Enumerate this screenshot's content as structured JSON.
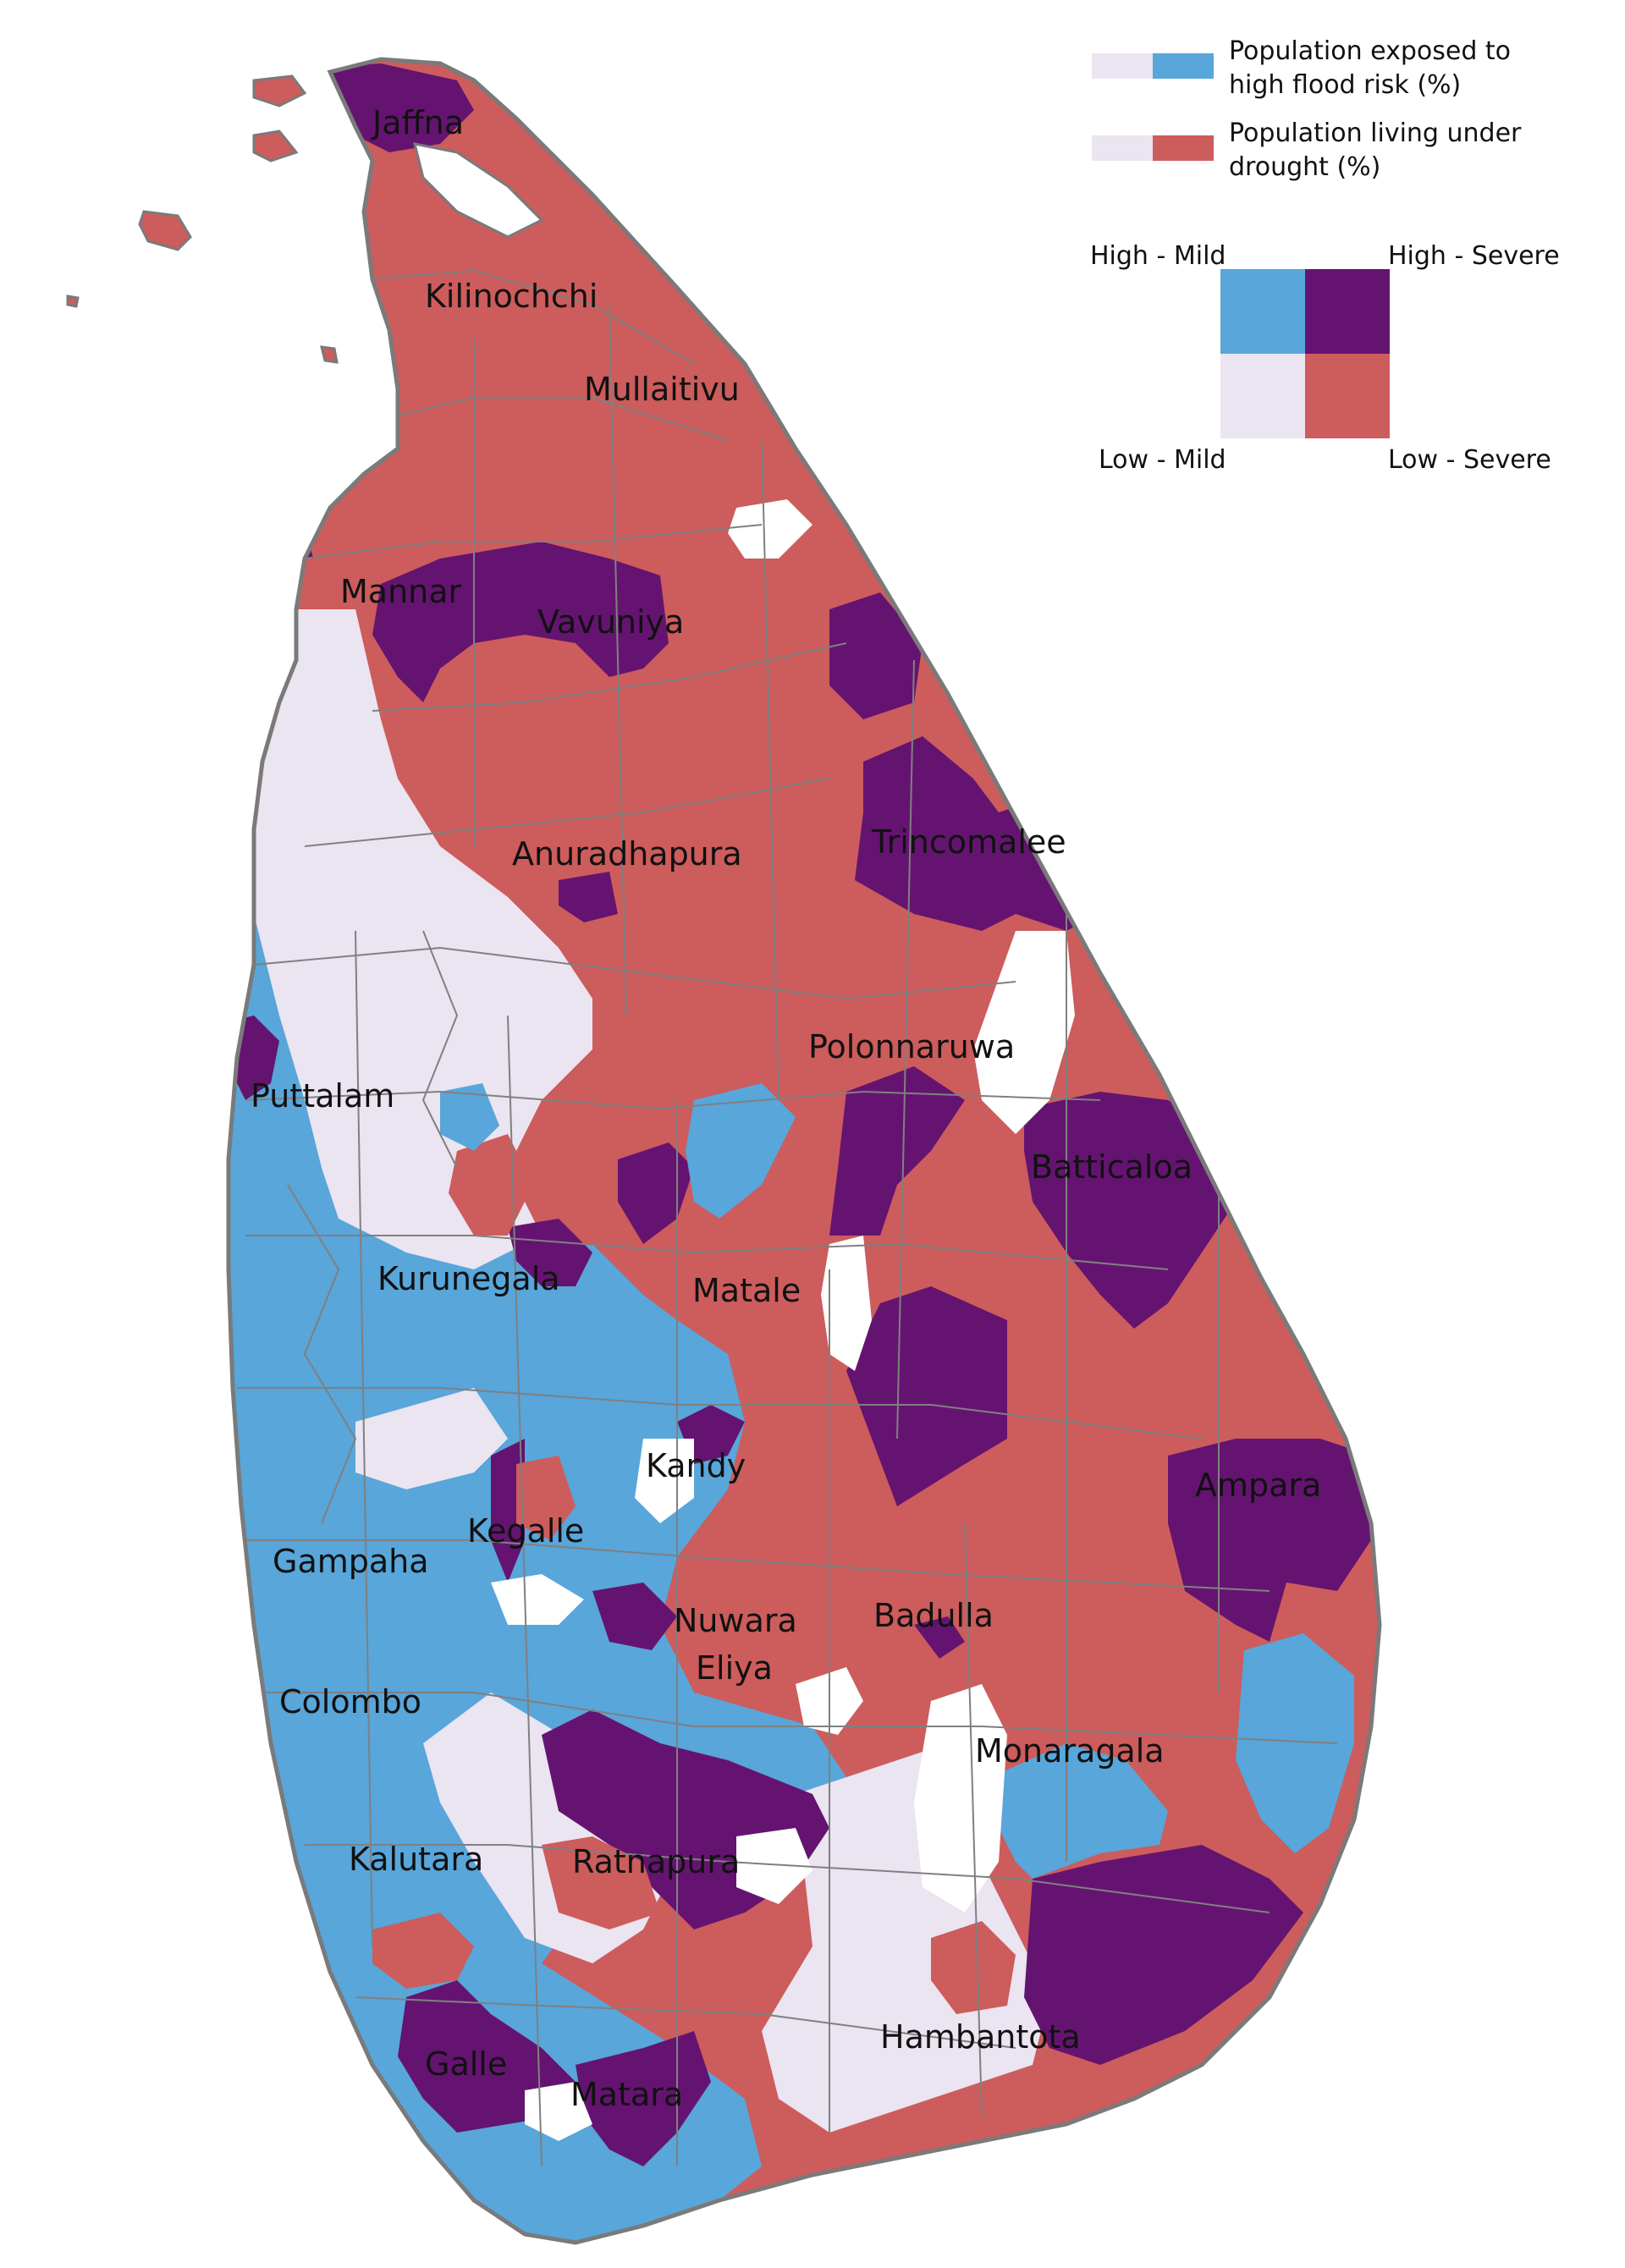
{
  "colors": {
    "low_mild": "#ebe4f1",
    "high_mild": "#58a6da",
    "low_severe": "#cd5c5c",
    "high_severe": "#641470",
    "no_data": "#ffffff",
    "border": "#808080",
    "coast": "#7a7a7a"
  },
  "legend": {
    "flood_label_line1": "Population exposed to",
    "flood_label_line2": "high flood risk (%)",
    "drought_label_line1": "Population living under",
    "drought_label_line2": "drought (%)",
    "high_mild": "High - Mild",
    "high_severe": "High - Severe",
    "low_mild": "Low - Mild",
    "low_severe": "Low - Severe"
  },
  "districts": [
    {
      "name": "Jaffna",
      "category": "high_severe"
    },
    {
      "name": "Kilinochchi",
      "category": "low_severe"
    },
    {
      "name": "Mullaitivu",
      "category": "low_severe"
    },
    {
      "name": "Mannar",
      "category": "high_severe"
    },
    {
      "name": "Vavuniya",
      "category": "high_severe"
    },
    {
      "name": "Anuradhapura",
      "category": "low_severe"
    },
    {
      "name": "Trincomalee",
      "category": "high_severe"
    },
    {
      "name": "Polonnaruwa",
      "category": "low_severe"
    },
    {
      "name": "Puttalam",
      "category": "low_mild"
    },
    {
      "name": "Batticaloa",
      "category": "high_severe"
    },
    {
      "name": "Kurunegala",
      "category": "low_mild"
    },
    {
      "name": "Matale",
      "category": "low_severe"
    },
    {
      "name": "Kandy",
      "category": "high_mild"
    },
    {
      "name": "Ampara",
      "category": "high_severe"
    },
    {
      "name": "Kegalle",
      "category": "high_mild"
    },
    {
      "name": "Gampaha",
      "category": "high_mild"
    },
    {
      "name": "Nuwara",
      "category": "low_severe"
    },
    {
      "name": "Eliya",
      "category": "low_severe"
    },
    {
      "name": "Badulla",
      "category": "low_severe"
    },
    {
      "name": "Colombo",
      "category": "high_mild"
    },
    {
      "name": "Monaragala",
      "category": "high_mild"
    },
    {
      "name": "Kalutara",
      "category": "high_mild"
    },
    {
      "name": "Ratnapura",
      "category": "high_severe"
    },
    {
      "name": "Hambantota",
      "category": "low_mild"
    },
    {
      "name": "Galle",
      "category": "high_severe"
    },
    {
      "name": "Matara",
      "category": "high_severe"
    }
  ]
}
